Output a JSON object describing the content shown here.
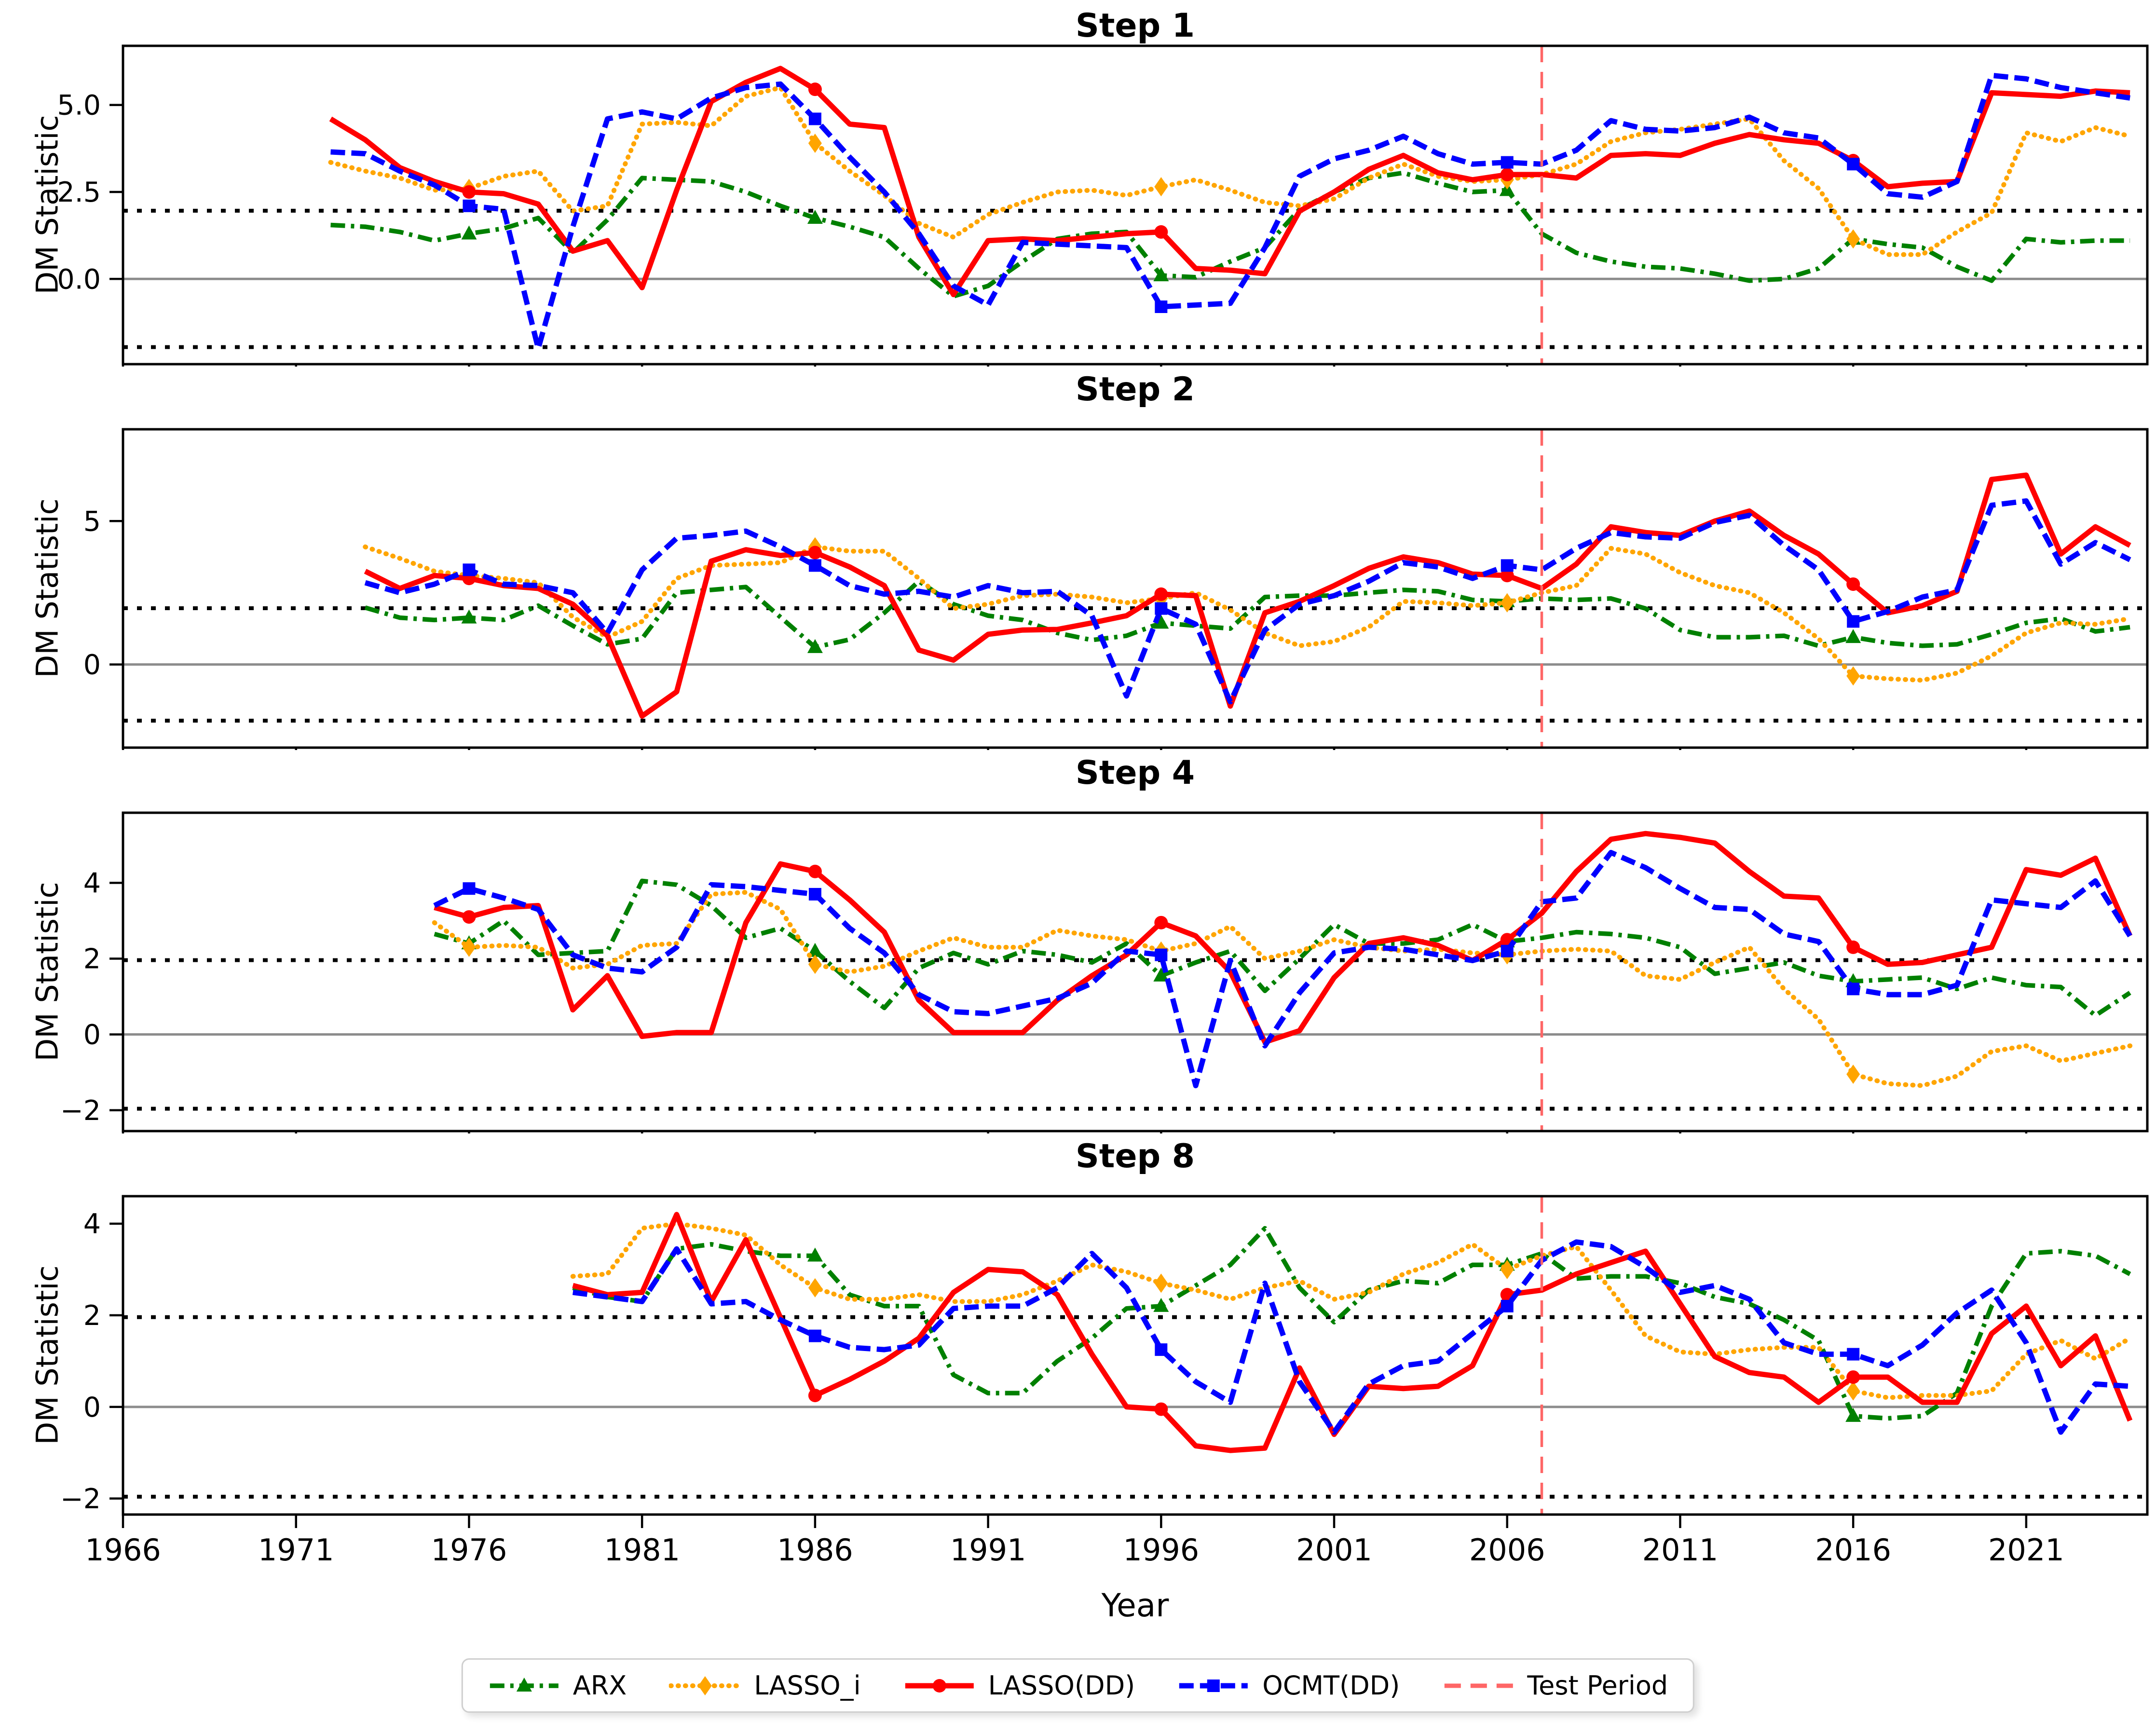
{
  "figure": {
    "ylabel": "DM Statistic",
    "xlabel": "Year",
    "xticks": [
      1966,
      1971,
      1976,
      1981,
      1986,
      1991,
      1996,
      2001,
      2006,
      2011,
      2016,
      2021
    ],
    "xlim": [
      1966,
      2024.5
    ],
    "test_period_year": 2007,
    "significance_upper": 1.96,
    "significance_lower": -1.96,
    "zero_line": 0
  },
  "colors": {
    "arx": "#008000",
    "lasso_i": "#FFA500",
    "lasso_dd": "#FF0000",
    "ocmt_dd": "#0000FF",
    "test_period": "#FF6666",
    "threshold": "#000000",
    "zero": "#8C8C8C",
    "spine": "#000000"
  },
  "legend": {
    "items": [
      {
        "label": "ARX",
        "series": "arx",
        "style": "dashdot",
        "marker": "triangle",
        "color": "#008000"
      },
      {
        "label": "LASSO_i",
        "series": "lasso_i",
        "style": "dotted",
        "marker": "diamond",
        "color": "#FFA500"
      },
      {
        "label": "LASSO(DD)",
        "series": "lasso_dd",
        "style": "solid",
        "marker": "circle",
        "color": "#FF0000"
      },
      {
        "label": "OCMT(DD)",
        "series": "ocmt_dd",
        "style": "dashed",
        "marker": "square",
        "color": "#0000FF"
      },
      {
        "label": "Test Period",
        "series": "test_period",
        "style": "testdash",
        "marker": "none",
        "color": "#FF6666"
      }
    ]
  },
  "chart_data": [
    {
      "type": "line",
      "title": "Step 1",
      "start_year": 1972,
      "ylim": [
        -2.45,
        6.7
      ],
      "yticks": [
        {
          "v": 0.0,
          "label": "0.0"
        },
        {
          "v": 2.5,
          "label": "2.5"
        },
        {
          "v": 5.0,
          "label": "5.0"
        }
      ],
      "marker_years": [
        1976,
        1986,
        1996,
        2006,
        2016
      ],
      "series": [
        {
          "name": "ARX",
          "key": "arx",
          "values": [
            1.55,
            1.5,
            1.35,
            1.1,
            1.3,
            1.45,
            1.75,
            0.75,
            1.7,
            2.9,
            2.85,
            2.8,
            2.5,
            2.1,
            1.75,
            1.5,
            1.2,
            0.3,
            -0.5,
            -0.2,
            0.5,
            1.15,
            1.3,
            1.35,
            0.1,
            0.05,
            0.5,
            0.9,
            2.0,
            2.5,
            2.9,
            3.05,
            2.75,
            2.5,
            2.55,
            1.3,
            0.75,
            0.5,
            0.35,
            0.3,
            0.15,
            -0.05,
            0.0,
            0.3,
            1.15,
            1.0,
            0.9,
            0.35,
            -0.05,
            1.15,
            1.05,
            1.1,
            1.1
          ]
        },
        {
          "name": "LASSO_i",
          "key": "lasso_i",
          "values": [
            3.35,
            3.1,
            2.9,
            2.55,
            2.6,
            2.95,
            3.1,
            1.95,
            2.1,
            4.45,
            4.5,
            4.4,
            5.25,
            5.5,
            3.9,
            3.1,
            2.4,
            1.6,
            1.2,
            1.85,
            2.2,
            2.5,
            2.55,
            2.4,
            2.65,
            2.85,
            2.55,
            2.2,
            2.1,
            2.3,
            2.9,
            3.3,
            2.95,
            2.8,
            2.85,
            3.0,
            3.3,
            3.95,
            4.2,
            4.3,
            4.45,
            4.6,
            3.4,
            2.6,
            1.15,
            0.7,
            0.7,
            1.35,
            1.9,
            4.2,
            3.95,
            4.35,
            4.1
          ]
        },
        {
          "name": "LASSO(DD)",
          "key": "lasso_dd",
          "values": [
            4.6,
            4.0,
            3.2,
            2.8,
            2.5,
            2.45,
            2.15,
            0.8,
            1.1,
            -0.25,
            2.55,
            5.1,
            5.65,
            6.05,
            5.45,
            4.45,
            4.35,
            1.2,
            -0.45,
            1.1,
            1.15,
            1.1,
            1.2,
            1.3,
            1.35,
            0.3,
            0.25,
            0.15,
            1.95,
            2.5,
            3.15,
            3.55,
            3.05,
            2.85,
            3.0,
            3.0,
            2.9,
            3.55,
            3.6,
            3.55,
            3.9,
            4.15,
            4.0,
            3.9,
            3.4,
            2.65,
            2.75,
            2.8,
            5.35,
            5.3,
            5.25,
            5.4,
            5.35
          ]
        },
        {
          "name": "OCMT(DD)",
          "key": "ocmt_dd",
          "values": [
            3.65,
            3.6,
            3.1,
            2.7,
            2.1,
            2.0,
            -2.0,
            1.5,
            4.6,
            4.8,
            4.6,
            5.2,
            5.5,
            5.6,
            4.6,
            3.5,
            2.5,
            1.3,
            -0.2,
            -0.75,
            1.05,
            1.0,
            0.95,
            0.9,
            -0.8,
            -0.75,
            -0.7,
            0.9,
            2.95,
            3.45,
            3.7,
            4.1,
            3.6,
            3.3,
            3.35,
            3.3,
            3.7,
            4.55,
            4.3,
            4.25,
            4.35,
            4.65,
            4.2,
            4.05,
            3.3,
            2.45,
            2.35,
            2.8,
            5.85,
            5.75,
            5.5,
            5.35,
            5.2
          ]
        }
      ]
    },
    {
      "type": "line",
      "title": "Step 2",
      "start_year": 1973,
      "ylim": [
        -2.9,
        8.2
      ],
      "yticks": [
        {
          "v": 0,
          "label": "0"
        },
        {
          "v": 5,
          "label": "5"
        }
      ],
      "marker_years": [
        1976,
        1986,
        1996,
        2006,
        2016
      ],
      "series": [
        {
          "name": "ARX",
          "key": "arx",
          "values": [
            1.98,
            1.63,
            1.55,
            1.63,
            1.55,
            2.05,
            1.35,
            0.7,
            0.9,
            2.5,
            2.6,
            2.7,
            1.65,
            0.6,
            0.87,
            1.8,
            2.9,
            2.1,
            1.7,
            1.55,
            1.1,
            0.85,
            1.0,
            1.45,
            1.35,
            1.25,
            2.35,
            2.4,
            2.4,
            2.5,
            2.6,
            2.55,
            2.25,
            2.2,
            2.3,
            2.25,
            2.3,
            1.95,
            1.2,
            0.95,
            0.95,
            1.0,
            0.65,
            0.95,
            0.75,
            0.65,
            0.7,
            1.05,
            1.45,
            1.6,
            1.15,
            1.3
          ]
        },
        {
          "name": "LASSO_i",
          "key": "lasso_i",
          "values": [
            4.1,
            3.7,
            3.25,
            3.1,
            3.0,
            2.85,
            1.65,
            0.95,
            1.5,
            3.0,
            3.45,
            3.5,
            3.55,
            4.1,
            3.95,
            3.95,
            3.0,
            1.95,
            2.1,
            2.4,
            2.45,
            2.35,
            2.15,
            2.3,
            2.5,
            1.9,
            1.1,
            0.65,
            0.8,
            1.3,
            2.2,
            2.15,
            2.05,
            2.15,
            2.5,
            2.75,
            4.05,
            3.85,
            3.2,
            2.75,
            2.5,
            1.8,
            0.9,
            -0.4,
            -0.5,
            -0.55,
            -0.3,
            0.3,
            1.1,
            1.45,
            1.4,
            1.6
          ]
        },
        {
          "name": "LASSO(DD)",
          "key": "lasso_dd",
          "values": [
            3.25,
            2.65,
            3.1,
            3.0,
            2.75,
            2.65,
            2.1,
            1.0,
            -1.8,
            -0.95,
            3.6,
            4.0,
            3.8,
            3.9,
            3.4,
            2.75,
            0.5,
            0.15,
            1.05,
            1.2,
            1.22,
            1.45,
            1.7,
            2.45,
            2.4,
            -1.45,
            1.8,
            2.2,
            2.75,
            3.35,
            3.75,
            3.55,
            3.15,
            3.1,
            2.65,
            3.5,
            4.8,
            4.6,
            4.5,
            5.0,
            5.35,
            4.5,
            3.85,
            2.8,
            1.8,
            2.05,
            2.55,
            6.45,
            6.6,
            3.85,
            4.8,
            4.15
          ]
        },
        {
          "name": "OCMT(DD)",
          "key": "ocmt_dd",
          "values": [
            2.85,
            2.5,
            2.8,
            3.3,
            2.8,
            2.75,
            2.5,
            1.1,
            3.3,
            4.4,
            4.5,
            4.65,
            4.1,
            3.45,
            2.75,
            2.45,
            2.55,
            2.35,
            2.75,
            2.5,
            2.55,
            1.7,
            -1.1,
            1.95,
            1.4,
            -1.3,
            1.2,
            2.1,
            2.4,
            2.9,
            3.55,
            3.4,
            3.0,
            3.45,
            3.3,
            4.05,
            4.6,
            4.45,
            4.4,
            4.95,
            5.2,
            4.15,
            3.3,
            1.5,
            1.85,
            2.35,
            2.6,
            5.55,
            5.7,
            3.5,
            4.25,
            3.65
          ]
        }
      ]
    },
    {
      "type": "line",
      "title": "Step 4",
      "start_year": 1975,
      "ylim": [
        -2.55,
        5.85
      ],
      "yticks": [
        {
          "v": -2,
          "label": "−2"
        },
        {
          "v": 0,
          "label": "0"
        },
        {
          "v": 2,
          "label": "2"
        },
        {
          "v": 4,
          "label": "4"
        }
      ],
      "marker_years": [
        1976,
        1986,
        1996,
        2006,
        2016
      ],
      "series": [
        {
          "name": "ARX",
          "key": "arx",
          "values": [
            2.65,
            2.4,
            3.0,
            2.1,
            2.15,
            2.2,
            4.05,
            3.95,
            3.4,
            2.55,
            2.8,
            2.2,
            1.4,
            0.7,
            1.75,
            2.15,
            1.85,
            2.2,
            2.1,
            1.9,
            2.4,
            1.55,
            1.9,
            2.2,
            1.15,
            2.0,
            2.9,
            2.4,
            2.4,
            2.5,
            2.9,
            2.45,
            2.55,
            2.7,
            2.65,
            2.55,
            2.3,
            1.6,
            1.75,
            1.9,
            1.55,
            1.4,
            1.45,
            1.5,
            1.2,
            1.5,
            1.3,
            1.25,
            0.5,
            1.1
          ]
        },
        {
          "name": "LASSO_i",
          "key": "lasso_i",
          "values": [
            2.95,
            2.3,
            2.35,
            2.3,
            1.75,
            1.85,
            2.35,
            2.4,
            3.7,
            3.75,
            3.3,
            1.85,
            1.65,
            1.8,
            2.2,
            2.55,
            2.3,
            2.3,
            2.75,
            2.6,
            2.5,
            2.2,
            2.4,
            2.85,
            2.0,
            2.2,
            2.5,
            2.3,
            2.2,
            2.25,
            2.15,
            2.1,
            2.2,
            2.25,
            2.2,
            1.55,
            1.45,
            1.9,
            2.3,
            1.2,
            0.4,
            -1.05,
            -1.3,
            -1.35,
            -1.1,
            -0.45,
            -0.3,
            -0.7,
            -0.5,
            -0.3
          ]
        },
        {
          "name": "LASSO(DD)",
          "key": "lasso_dd",
          "values": [
            3.35,
            3.1,
            3.35,
            3.4,
            0.65,
            1.55,
            -0.05,
            0.05,
            0.05,
            2.95,
            4.5,
            4.3,
            3.55,
            2.7,
            0.9,
            0.05,
            0.05,
            0.05,
            0.9,
            1.55,
            2.1,
            2.95,
            2.6,
            1.65,
            -0.2,
            0.1,
            1.5,
            2.4,
            2.55,
            2.35,
            1.95,
            2.5,
            3.2,
            4.3,
            5.15,
            5.3,
            5.2,
            5.05,
            4.3,
            3.65,
            3.6,
            2.3,
            1.85,
            1.9,
            2.1,
            2.3,
            4.35,
            4.2,
            4.65,
            2.6
          ]
        },
        {
          "name": "OCMT(DD)",
          "key": "ocmt_dd",
          "values": [
            3.4,
            3.85,
            3.6,
            3.3,
            2.1,
            1.75,
            1.65,
            2.3,
            3.95,
            3.9,
            3.8,
            3.7,
            2.8,
            2.15,
            1.05,
            0.6,
            0.55,
            0.75,
            0.95,
            1.35,
            2.2,
            2.1,
            -1.35,
            1.95,
            -0.3,
            1.1,
            2.15,
            2.3,
            2.25,
            2.1,
            1.95,
            2.2,
            3.5,
            3.6,
            4.8,
            4.4,
            3.85,
            3.35,
            3.3,
            2.65,
            2.45,
            1.2,
            1.05,
            1.05,
            1.3,
            3.55,
            3.45,
            3.35,
            4.05,
            2.6
          ]
        }
      ]
    },
    {
      "type": "line",
      "title": "Step 8",
      "start_year": 1979,
      "ylim": [
        -2.35,
        4.6
      ],
      "yticks": [
        {
          "v": -2,
          "label": "−2"
        },
        {
          "v": 0,
          "label": "0"
        },
        {
          "v": 2,
          "label": "2"
        },
        {
          "v": 4,
          "label": "4"
        }
      ],
      "marker_years": [
        1986,
        1996,
        2006,
        2016
      ],
      "series": [
        {
          "name": "ARX",
          "key": "arx",
          "values": [
            2.6,
            2.4,
            2.3,
            3.45,
            3.55,
            3.4,
            3.3,
            3.3,
            2.45,
            2.2,
            2.2,
            0.7,
            0.3,
            0.3,
            1.0,
            1.5,
            2.15,
            2.2,
            2.65,
            3.1,
            3.9,
            2.6,
            1.85,
            2.55,
            2.75,
            2.7,
            3.1,
            3.1,
            3.35,
            2.8,
            2.85,
            2.85,
            2.7,
            2.4,
            2.25,
            1.9,
            1.45,
            -0.2,
            -0.25,
            -0.2,
            0.3,
            2.2,
            3.35,
            3.4,
            3.3,
            2.9
          ]
        },
        {
          "name": "LASSO_i",
          "key": "lasso_i",
          "values": [
            2.85,
            2.9,
            3.9,
            4.0,
            3.9,
            3.75,
            3.1,
            2.6,
            2.35,
            2.35,
            2.45,
            2.3,
            2.3,
            2.45,
            2.75,
            3.1,
            2.95,
            2.7,
            2.55,
            2.35,
            2.6,
            2.75,
            2.35,
            2.5,
            2.9,
            3.15,
            3.55,
            3.0,
            3.3,
            3.5,
            2.55,
            1.55,
            1.2,
            1.15,
            1.25,
            1.3,
            1.3,
            0.35,
            0.2,
            0.25,
            0.25,
            0.35,
            1.15,
            1.45,
            1.05,
            1.5
          ]
        },
        {
          "name": "LASSO(DD)",
          "key": "lasso_dd",
          "values": [
            2.65,
            2.45,
            2.5,
            4.2,
            2.3,
            3.65,
            1.95,
            0.25,
            0.6,
            1.0,
            1.5,
            2.5,
            3.0,
            2.95,
            2.45,
            1.15,
            0.0,
            -0.05,
            -0.85,
            -0.95,
            -0.9,
            0.85,
            -0.6,
            0.45,
            0.4,
            0.45,
            0.9,
            2.45,
            2.55,
            2.9,
            3.15,
            3.4,
            2.25,
            1.1,
            0.75,
            0.65,
            0.1,
            0.65,
            0.65,
            0.1,
            0.1,
            1.6,
            2.2,
            0.9,
            1.55,
            -0.3
          ]
        },
        {
          "name": "OCMT(DD)",
          "key": "ocmt_dd",
          "values": [
            2.5,
            2.4,
            2.3,
            3.45,
            2.25,
            2.3,
            1.9,
            1.55,
            1.3,
            1.25,
            1.35,
            2.15,
            2.2,
            2.2,
            2.6,
            3.35,
            2.6,
            1.25,
            0.55,
            0.1,
            2.7,
            0.55,
            -0.55,
            0.5,
            0.9,
            1.0,
            1.6,
            2.2,
            3.2,
            3.6,
            3.5,
            3.05,
            2.5,
            2.65,
            2.35,
            1.4,
            1.15,
            1.15,
            0.9,
            1.35,
            2.05,
            2.55,
            1.4,
            -0.55,
            0.5,
            0.45
          ]
        }
      ]
    }
  ]
}
